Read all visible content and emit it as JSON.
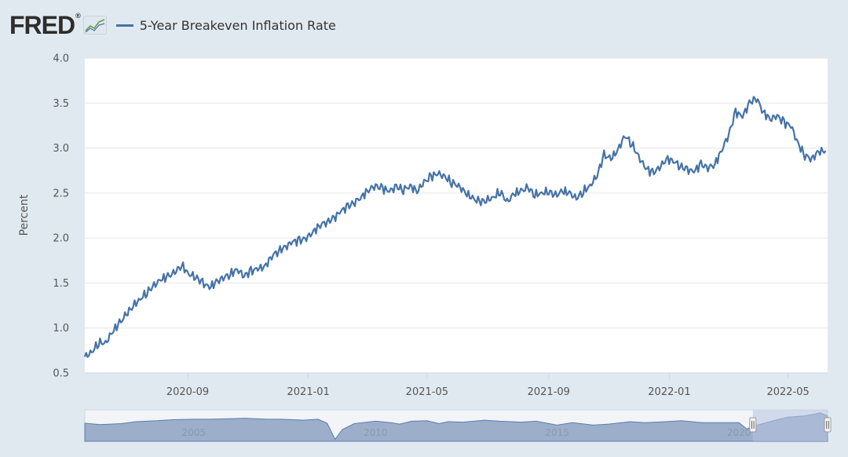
{
  "header": {
    "logo_text": "FRED",
    "logo_reg": "®",
    "logo_icon": "fred-graph-icon"
  },
  "colors": {
    "background": "#e1e9f0",
    "plot_background": "#ffffff",
    "series": "#4572a7",
    "grid": "#e6e6e6",
    "navigator_fill": "#7f97bb",
    "navigator_selection": "#b6c4e0"
  },
  "chart_data": {
    "type": "line",
    "title": "",
    "ylabel": "Percent",
    "xlabel": "",
    "ylim": [
      0.5,
      4.0
    ],
    "xlim": [
      "2020-05-20",
      "2022-06-10"
    ],
    "yticks": [
      "0.5",
      "1.0",
      "1.5",
      "2.0",
      "2.5",
      "3.0",
      "3.5",
      "4.0"
    ],
    "xticks": [
      "2020-09",
      "2021-01",
      "2021-05",
      "2021-09",
      "2022-01",
      "2022-05"
    ],
    "grid": true,
    "legend": "top-left",
    "series": [
      {
        "name": "5-Year Breakeven Inflation Rate",
        "points": [
          [
            "2020-05-20",
            0.68
          ],
          [
            "2020-05-27",
            0.73
          ],
          [
            "2020-06-03",
            0.84
          ],
          [
            "2020-06-10",
            0.83
          ],
          [
            "2020-06-17",
            0.96
          ],
          [
            "2020-06-24",
            1.05
          ],
          [
            "2020-07-01",
            1.15
          ],
          [
            "2020-07-08",
            1.25
          ],
          [
            "2020-07-15",
            1.32
          ],
          [
            "2020-07-22",
            1.4
          ],
          [
            "2020-07-29",
            1.47
          ],
          [
            "2020-08-05",
            1.54
          ],
          [
            "2020-08-12",
            1.57
          ],
          [
            "2020-08-19",
            1.62
          ],
          [
            "2020-08-26",
            1.7
          ],
          [
            "2020-09-02",
            1.6
          ],
          [
            "2020-09-09",
            1.57
          ],
          [
            "2020-09-16",
            1.5
          ],
          [
            "2020-09-23",
            1.45
          ],
          [
            "2020-09-30",
            1.51
          ],
          [
            "2020-10-07",
            1.56
          ],
          [
            "2020-10-14",
            1.6
          ],
          [
            "2020-10-21",
            1.65
          ],
          [
            "2020-10-28",
            1.58
          ],
          [
            "2020-11-04",
            1.63
          ],
          [
            "2020-11-11",
            1.66
          ],
          [
            "2020-11-18",
            1.68
          ],
          [
            "2020-11-25",
            1.8
          ],
          [
            "2020-12-02",
            1.86
          ],
          [
            "2020-12-09",
            1.9
          ],
          [
            "2020-12-16",
            1.96
          ],
          [
            "2020-12-23",
            1.97
          ],
          [
            "2020-12-30",
            2.0
          ],
          [
            "2021-01-06",
            2.07
          ],
          [
            "2021-01-13",
            2.15
          ],
          [
            "2021-01-20",
            2.18
          ],
          [
            "2021-01-27",
            2.22
          ],
          [
            "2021-02-03",
            2.3
          ],
          [
            "2021-02-10",
            2.35
          ],
          [
            "2021-02-17",
            2.4
          ],
          [
            "2021-02-24",
            2.46
          ],
          [
            "2021-03-03",
            2.54
          ],
          [
            "2021-03-10",
            2.58
          ],
          [
            "2021-03-17",
            2.55
          ],
          [
            "2021-03-24",
            2.52
          ],
          [
            "2021-03-31",
            2.57
          ],
          [
            "2021-04-07",
            2.54
          ],
          [
            "2021-04-14",
            2.58
          ],
          [
            "2021-04-21",
            2.52
          ],
          [
            "2021-04-28",
            2.62
          ],
          [
            "2021-05-05",
            2.68
          ],
          [
            "2021-05-12",
            2.72
          ],
          [
            "2021-05-19",
            2.68
          ],
          [
            "2021-05-26",
            2.62
          ],
          [
            "2021-06-02",
            2.58
          ],
          [
            "2021-06-09",
            2.5
          ],
          [
            "2021-06-16",
            2.44
          ],
          [
            "2021-06-23",
            2.4
          ],
          [
            "2021-06-30",
            2.42
          ],
          [
            "2021-07-07",
            2.45
          ],
          [
            "2021-07-14",
            2.52
          ],
          [
            "2021-07-21",
            2.4
          ],
          [
            "2021-07-28",
            2.49
          ],
          [
            "2021-08-04",
            2.52
          ],
          [
            "2021-08-11",
            2.56
          ],
          [
            "2021-08-18",
            2.48
          ],
          [
            "2021-08-25",
            2.5
          ],
          [
            "2021-09-01",
            2.52
          ],
          [
            "2021-09-08",
            2.47
          ],
          [
            "2021-09-15",
            2.52
          ],
          [
            "2021-09-22",
            2.5
          ],
          [
            "2021-09-29",
            2.44
          ],
          [
            "2021-10-06",
            2.52
          ],
          [
            "2021-10-13",
            2.58
          ],
          [
            "2021-10-20",
            2.7
          ],
          [
            "2021-10-27",
            2.92
          ],
          [
            "2021-11-03",
            2.88
          ],
          [
            "2021-11-10",
            2.98
          ],
          [
            "2021-11-17",
            3.14
          ],
          [
            "2021-11-24",
            3.05
          ],
          [
            "2021-12-01",
            2.9
          ],
          [
            "2021-12-08",
            2.78
          ],
          [
            "2021-12-15",
            2.72
          ],
          [
            "2021-12-22",
            2.78
          ],
          [
            "2021-12-29",
            2.88
          ],
          [
            "2022-01-05",
            2.86
          ],
          [
            "2022-01-12",
            2.8
          ],
          [
            "2022-01-19",
            2.76
          ],
          [
            "2022-01-26",
            2.74
          ],
          [
            "2022-02-02",
            2.82
          ],
          [
            "2022-02-09",
            2.78
          ],
          [
            "2022-02-16",
            2.82
          ],
          [
            "2022-02-23",
            2.98
          ],
          [
            "2022-03-02",
            3.15
          ],
          [
            "2022-03-09",
            3.4
          ],
          [
            "2022-03-16",
            3.35
          ],
          [
            "2022-03-23",
            3.5
          ],
          [
            "2022-03-30",
            3.56
          ],
          [
            "2022-04-06",
            3.4
          ],
          [
            "2022-04-13",
            3.32
          ],
          [
            "2022-04-20",
            3.36
          ],
          [
            "2022-04-27",
            3.28
          ],
          [
            "2022-05-04",
            3.25
          ],
          [
            "2022-05-11",
            3.05
          ],
          [
            "2022-05-18",
            2.92
          ],
          [
            "2022-05-25",
            2.88
          ],
          [
            "2022-06-01",
            2.96
          ],
          [
            "2022-06-08",
            2.97
          ]
        ]
      }
    ],
    "navigator": {
      "xticks": [
        "2005",
        "2010",
        "2015",
        "2020"
      ],
      "xlim": [
        "2002-01-01",
        "2022-06-10"
      ],
      "selection": [
        "2020-05-20",
        "2022-06-10"
      ],
      "points": [
        [
          "2002-01-01",
          1.5
        ],
        [
          "2002-06-01",
          1.2
        ],
        [
          "2003-01-01",
          1.4
        ],
        [
          "2003-06-01",
          1.8
        ],
        [
          "2004-01-01",
          2.0
        ],
        [
          "2004-06-01",
          2.2
        ],
        [
          "2005-01-01",
          2.3
        ],
        [
          "2005-06-01",
          2.3
        ],
        [
          "2006-01-01",
          2.4
        ],
        [
          "2006-06-01",
          2.5
        ],
        [
          "2007-01-01",
          2.3
        ],
        [
          "2007-06-01",
          2.3
        ],
        [
          "2008-01-01",
          2.1
        ],
        [
          "2008-06-01",
          2.3
        ],
        [
          "2008-09-01",
          1.5
        ],
        [
          "2008-11-20",
          -1.8
        ],
        [
          "2009-02-01",
          0.2
        ],
        [
          "2009-06-01",
          1.4
        ],
        [
          "2010-01-01",
          1.9
        ],
        [
          "2010-06-01",
          1.6
        ],
        [
          "2010-09-01",
          1.3
        ],
        [
          "2011-01-01",
          1.9
        ],
        [
          "2011-06-01",
          2.0
        ],
        [
          "2011-10-01",
          1.4
        ],
        [
          "2012-01-01",
          1.8
        ],
        [
          "2012-06-01",
          1.7
        ],
        [
          "2013-01-01",
          2.1
        ],
        [
          "2013-06-01",
          1.9
        ],
        [
          "2014-01-01",
          1.7
        ],
        [
          "2014-06-01",
          1.9
        ],
        [
          "2015-01-01",
          1.1
        ],
        [
          "2015-06-01",
          1.6
        ],
        [
          "2016-01-01",
          1.1
        ],
        [
          "2016-06-01",
          1.3
        ],
        [
          "2017-01-01",
          1.8
        ],
        [
          "2017-06-01",
          1.6
        ],
        [
          "2018-01-01",
          1.8
        ],
        [
          "2018-06-01",
          2.0
        ],
        [
          "2019-01-01",
          1.6
        ],
        [
          "2019-06-01",
          1.6
        ],
        [
          "2020-01-01",
          1.6
        ],
        [
          "2020-03-20",
          0.3
        ],
        [
          "2020-06-01",
          0.9
        ],
        [
          "2021-01-01",
          2.1
        ],
        [
          "2021-05-01",
          2.7
        ],
        [
          "2021-11-01",
          3.0
        ],
        [
          "2022-03-28",
          3.6
        ],
        [
          "2022-06-08",
          3.0
        ]
      ]
    }
  }
}
